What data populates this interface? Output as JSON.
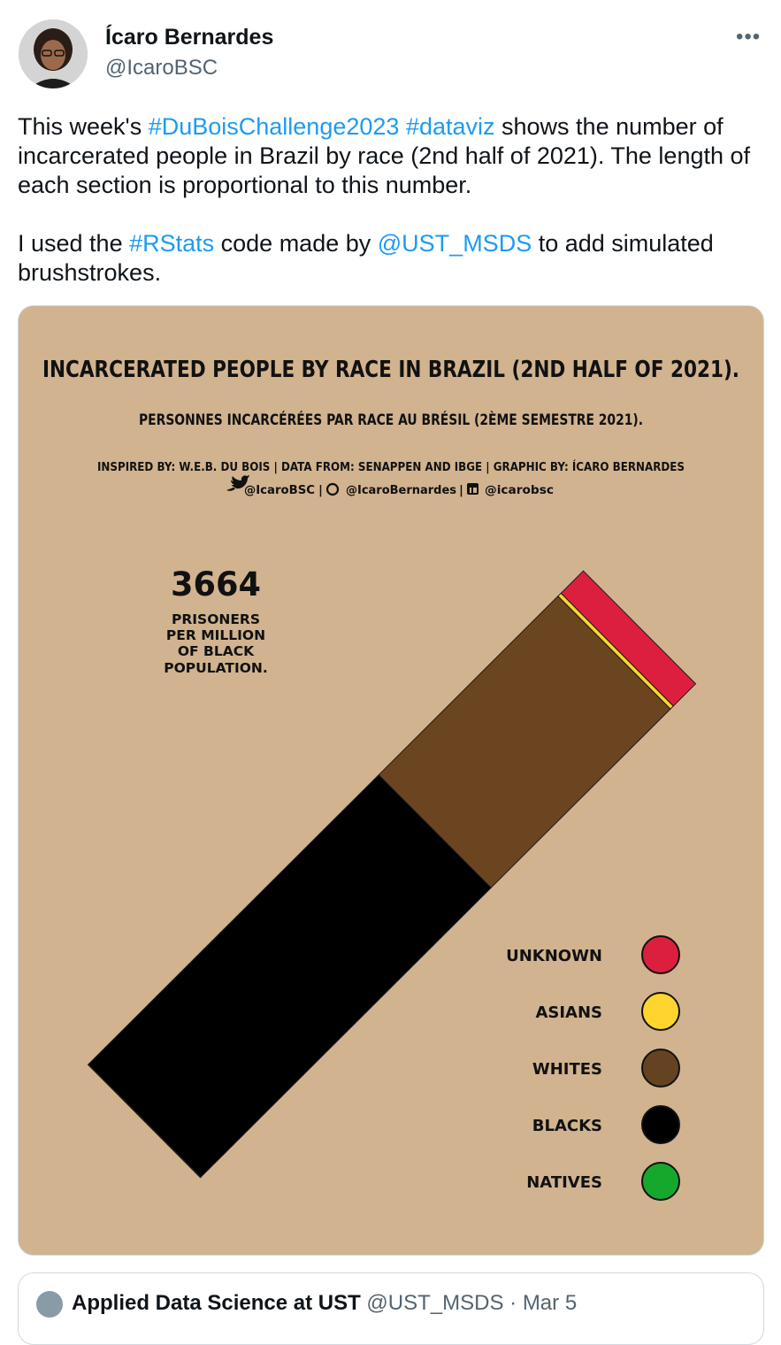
{
  "author": {
    "name": "Ícaro Bernardes",
    "handle": "@IcaroBSC",
    "more_icon": "ellipsis-icon"
  },
  "tweet": {
    "p1_a": "This week's ",
    "p1_tag1": "#DuBoisChallenge2023",
    "p1_sp": " ",
    "p1_tag2": "#dataviz",
    "p1_b": " shows the number of incarcerated people in Brazil by race (2nd half of 2021). The length of each section is proportional to this number.",
    "p2_a": "I used the ",
    "p2_tag1": "#RStats",
    "p2_b": " code made by ",
    "p2_tag2": "@UST_MSDS",
    "p2_c": " to add simulated brushstrokes."
  },
  "media": {
    "title": "INCARCERATED PEOPLE BY RACE IN BRAZIL (2ND HALF OF 2021).",
    "subtitle": "PERSONNES INCARCÉRÉES PAR RACE AU BRÉSIL (2ÈME SEMESTRE 2021).",
    "credits": "INSPIRED BY: W.E.B. DU BOIS | DATA FROM: SENAPPEN AND IBGE | GRAPHIC BY: ÍCARO BERNARDES",
    "social_twitter": "@IcaroBSC",
    "social_github": "@IcaroBernardes",
    "social_linkedin": "@icarobsc",
    "stat_value": "3664",
    "stat_lines": [
      "PRISONERS",
      "PER MILLION",
      "OF BLACK",
      "POPULATION."
    ],
    "background_color": "#d1b38f"
  },
  "chart_data": {
    "type": "bar",
    "orientation": "stacked-diagonal",
    "categories": [
      "NATIVES",
      "BLACKS",
      "WHITES",
      "ASIANS",
      "UNKNOWN"
    ],
    "values": [
      0.1,
      58.6,
      36.2,
      0.6,
      4.5
    ],
    "colors": [
      "#16a82c",
      "#000000",
      "#6b4520",
      "#ffd42e",
      "#dc1f3f"
    ],
    "legend": [
      {
        "label": "UNKNOWN",
        "color": "#dc1f3f"
      },
      {
        "label": "ASIANS",
        "color": "#ffd42e"
      },
      {
        "label": "WHITES",
        "color": "#654321"
      },
      {
        "label": "BLACKS",
        "color": "#000000"
      },
      {
        "label": "NATIVES",
        "color": "#16a82c"
      }
    ],
    "legend_position": "bottom-right"
  },
  "quote": {
    "name": "Applied Data Science at UST",
    "meta": " @UST_MSDS · Mar 5"
  }
}
